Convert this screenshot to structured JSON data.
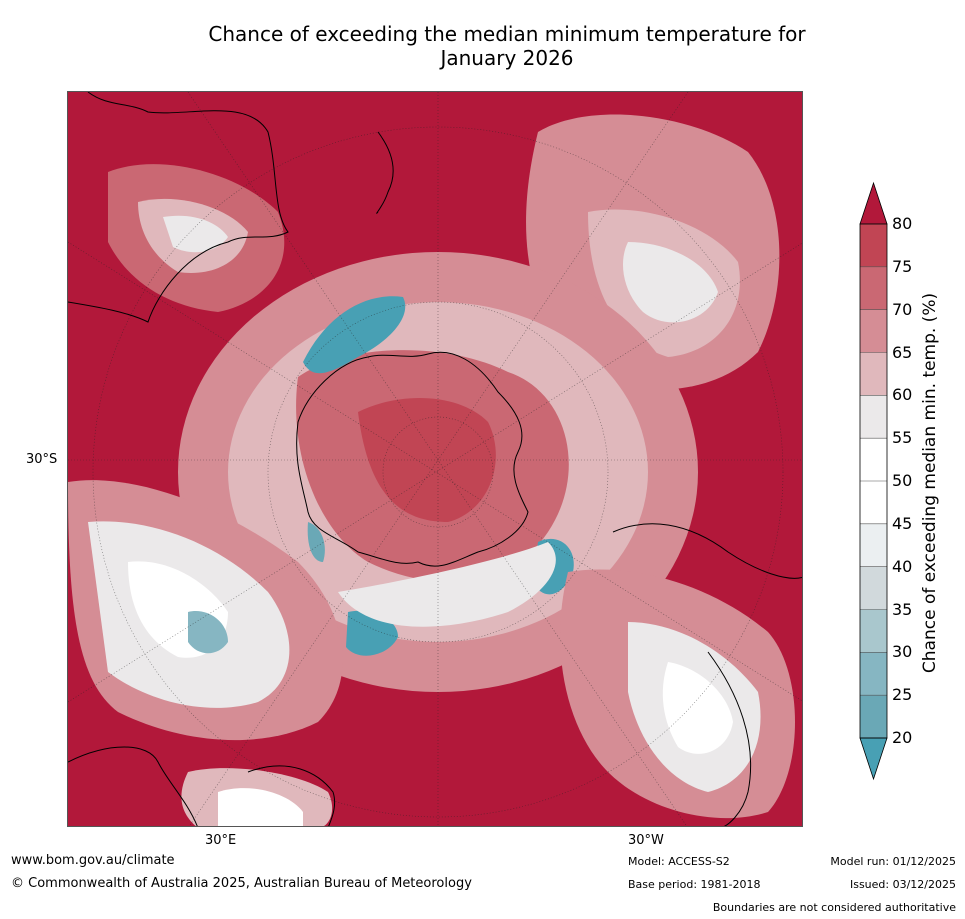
{
  "title_line1": "Chance of exceeding the median minimum temperature for",
  "title_line2": "January 2026",
  "map": {
    "lat_label": "30°S",
    "lon_label_left": "30°E",
    "lon_label_right": "30°W",
    "colors": {
      "ocean_high": "#b2183a",
      "mid_light": "#e8e8e8",
      "low_teal": "#48a0b4",
      "coast": "#000000"
    }
  },
  "legend": {
    "title": "Chance of exceeding median min. temp. (%)",
    "ticks": [
      "80",
      "75",
      "70",
      "65",
      "60",
      "55",
      "50",
      "45",
      "40",
      "35",
      "30",
      "25",
      "20"
    ],
    "colors": [
      "#c14554",
      "#ca6873",
      "#d58d95",
      "#e0b8bc",
      "#ebe9ea",
      "#ffffff",
      "#ffffff",
      "#ebeff1",
      "#d1d9dc",
      "#a9c7cd",
      "#86b6c2",
      "#6aa8b6"
    ],
    "top_arrow_color": "#b2183a",
    "bottom_arrow_color": "#48a0b4"
  },
  "footer": {
    "website": "www.bom.gov.au/climate",
    "copyright": "© Commonwealth of Australia 2025, Australian Bureau of Meteorology",
    "model": "Model: ACCESS-S2",
    "base_period": "Base period: 1981-2018",
    "model_run": "Model run: 01/12/2025",
    "issued": "Issued: 03/12/2025",
    "disclaimer": "Boundaries are not considered authoritative"
  }
}
